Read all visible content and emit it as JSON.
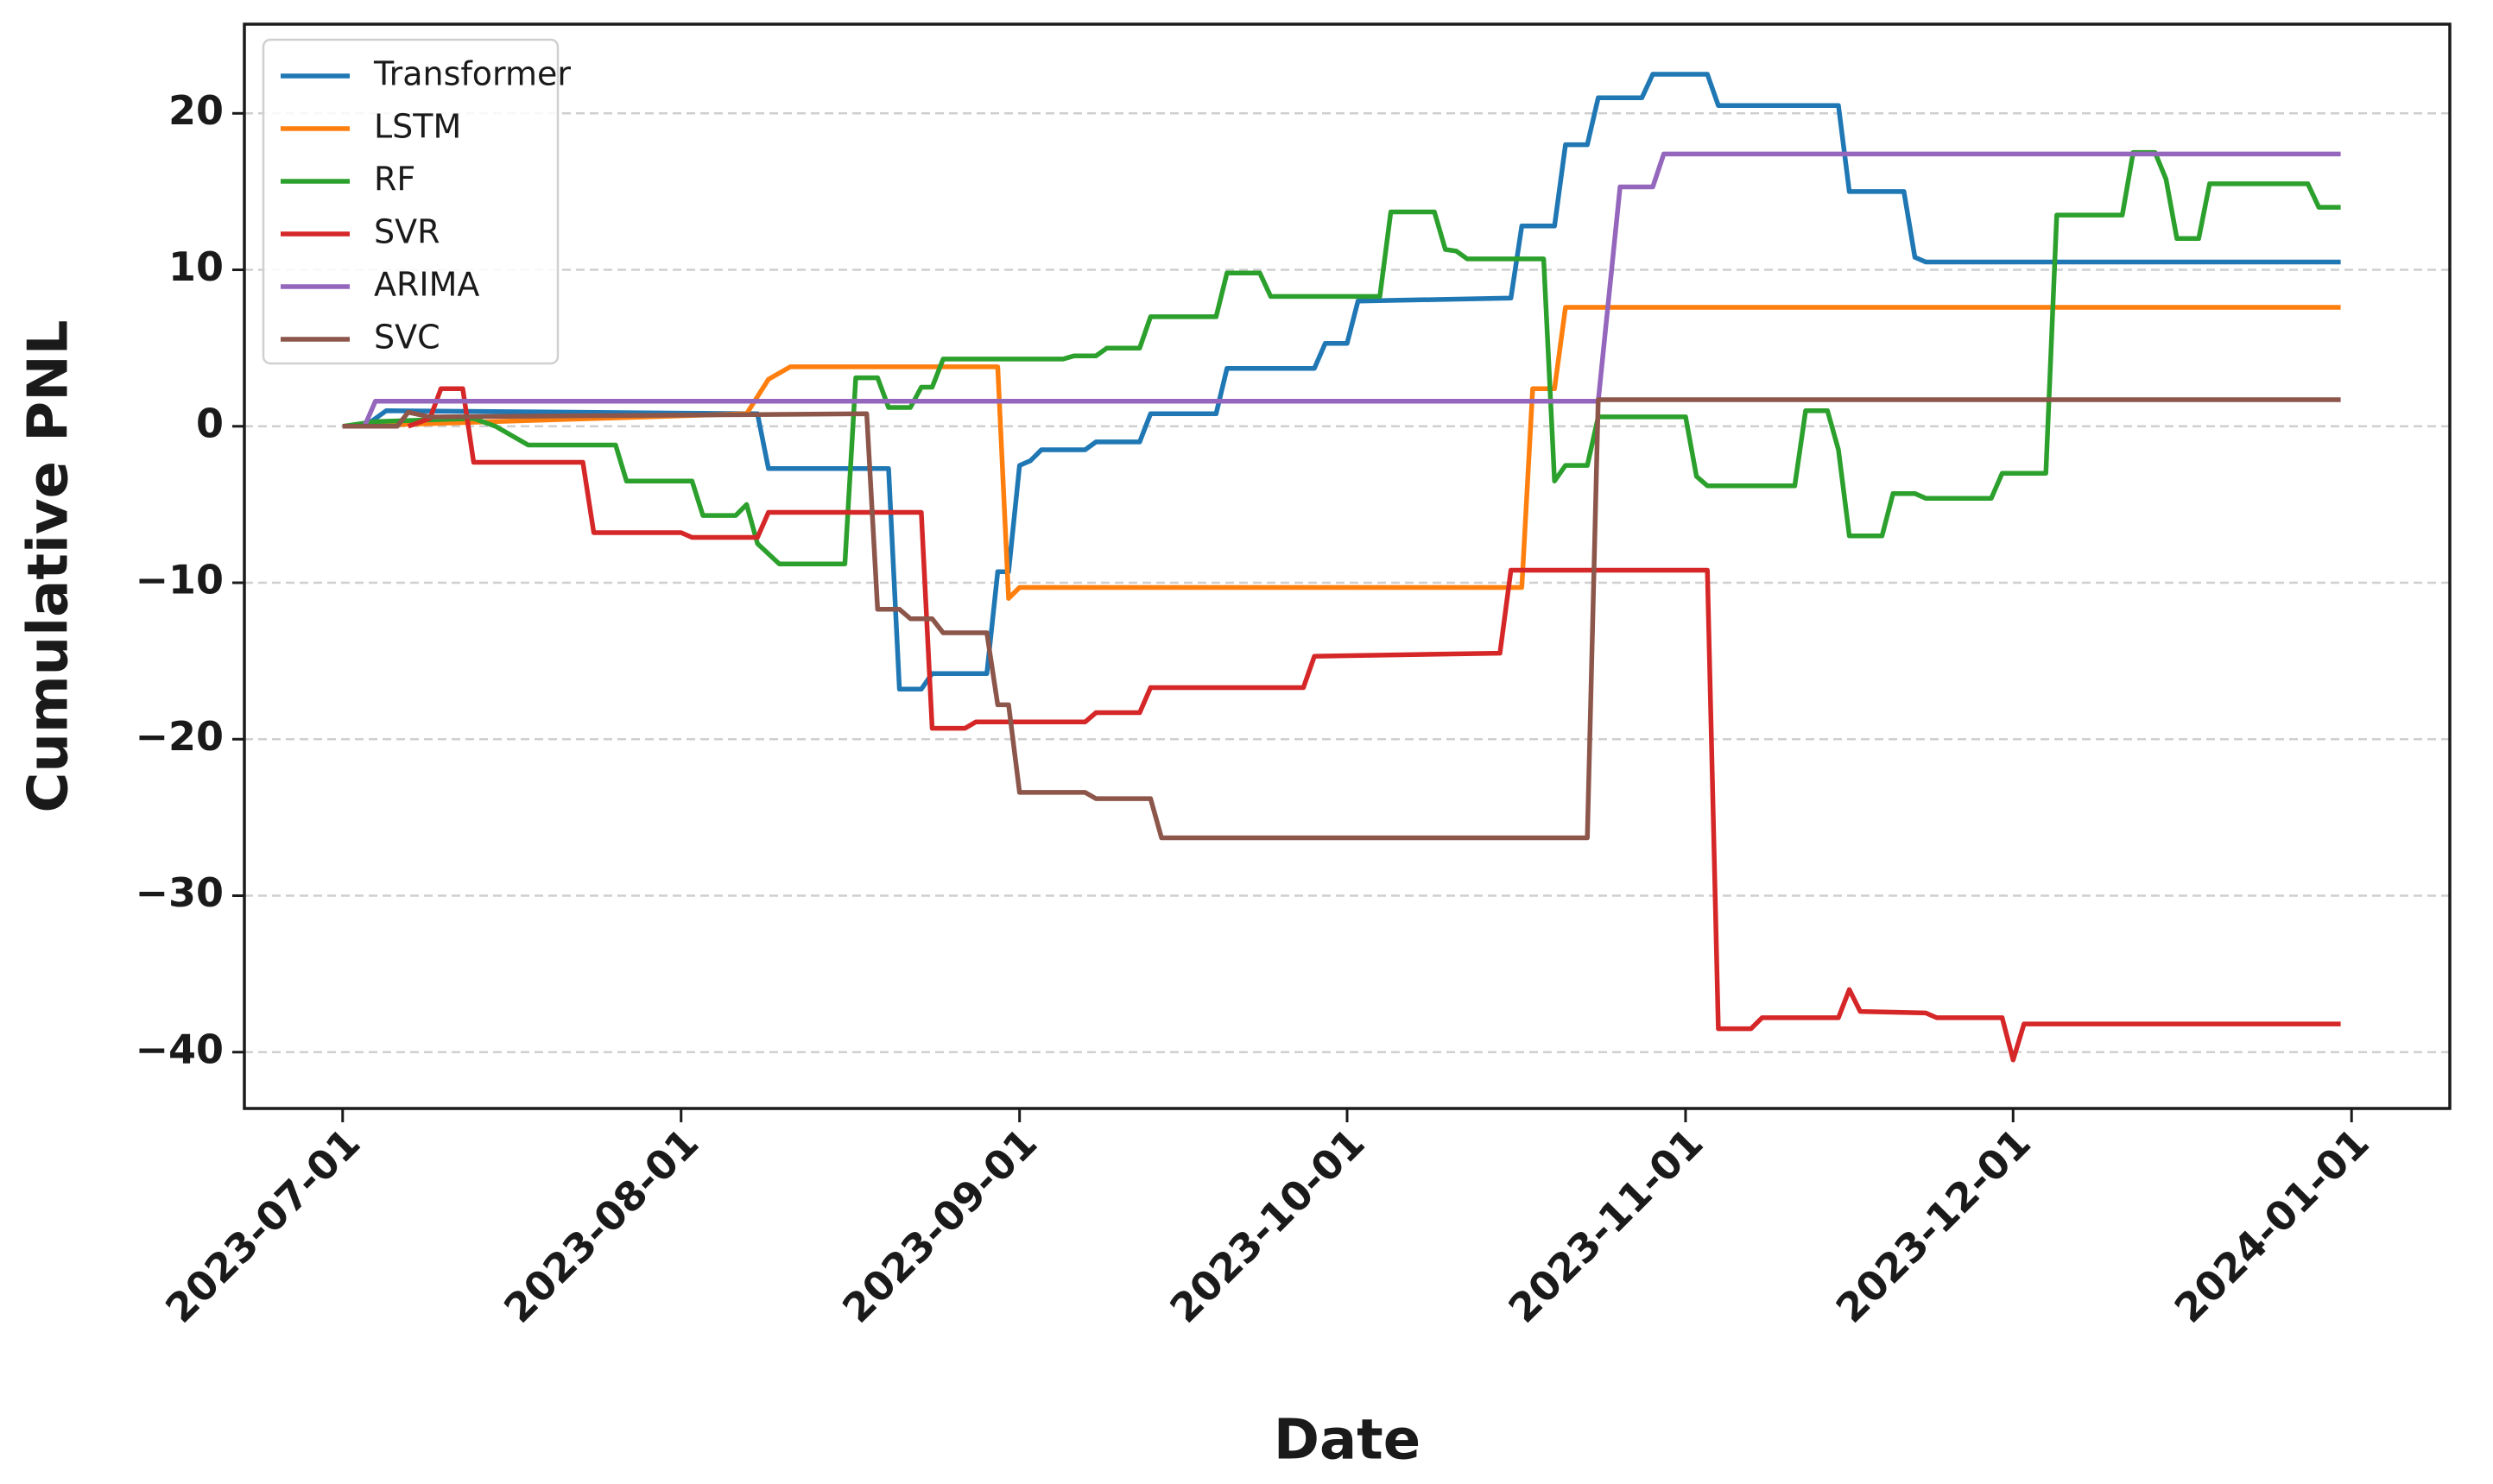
{
  "chart_data": {
    "type": "line",
    "xlabel": "Date",
    "ylabel": "Cumulative PNL",
    "xlim": [
      "2023-06-22",
      "2024-01-10"
    ],
    "xticks": [
      "2023-07-01",
      "2023-08-01",
      "2023-09-01",
      "2023-10-01",
      "2023-11-01",
      "2023-12-01",
      "2024-01-01"
    ],
    "ylim": [
      -43.6,
      25.7
    ],
    "yticks": [
      20,
      10,
      0,
      {
        "value": -10,
        "label": "−10"
      },
      {
        "value": -20,
        "label": "−20"
      },
      {
        "value": -30,
        "label": "−30"
      },
      {
        "value": -40,
        "label": "−40"
      }
    ],
    "grid": true,
    "legend": "upper left",
    "series": [
      {
        "name": "Transformer",
        "color": "#1f77b4",
        "x": [
          "2023-07-01",
          "2023-07-03",
          "2023-07-05",
          "2023-08-08",
          "2023-08-09",
          "2023-08-20",
          "2023-08-21",
          "2023-08-23",
          "2023-08-24",
          "2023-08-29",
          "2023-08-30",
          "2023-08-31",
          "2023-09-01",
          "2023-09-02",
          "2023-09-03",
          "2023-09-07",
          "2023-09-08",
          "2023-09-12",
          "2023-09-13",
          "2023-09-19",
          "2023-09-20",
          "2023-09-28",
          "2023-09-29",
          "2023-10-01",
          "2023-10-02",
          "2023-10-16",
          "2023-10-17",
          "2023-10-20",
          "2023-10-21",
          "2023-10-23",
          "2023-10-24",
          "2023-10-28",
          "2023-10-29",
          "2023-11-03",
          "2023-11-04",
          "2023-11-15",
          "2023-11-16",
          "2023-11-21",
          "2023-11-22",
          "2023-11-23",
          "2023-12-31"
        ],
        "values": [
          0,
          0,
          1,
          0.8,
          -2.7,
          -2.7,
          -16.8,
          -16.8,
          -15.8,
          -15.8,
          -9.3,
          -9.3,
          -2.5,
          -2.2,
          -1.5,
          -1.5,
          -1,
          -1,
          0.8,
          0.8,
          3.7,
          3.7,
          5.3,
          5.3,
          8,
          8.2,
          12.8,
          12.8,
          18,
          18,
          21,
          21,
          22.5,
          22.5,
          20.5,
          20.5,
          15,
          15,
          10.8,
          10.5,
          10.5
        ]
      },
      {
        "name": "LSTM",
        "color": "#ff7f0e",
        "x": [
          "2023-07-01",
          "2023-08-07",
          "2023-08-09",
          "2023-08-11",
          "2023-08-30",
          "2023-08-31",
          "2023-09-01",
          "2023-10-17",
          "2023-10-18",
          "2023-10-20",
          "2023-10-21",
          "2023-12-31"
        ],
        "values": [
          0,
          0.8,
          3,
          3.8,
          3.8,
          -11,
          -10.3,
          -10.3,
          2.4,
          2.4,
          7.6,
          7.6
        ]
      },
      {
        "name": "RF",
        "color": "#2ca02c",
        "x": [
          "2023-07-01",
          "2023-07-04",
          "2023-07-13",
          "2023-07-15",
          "2023-07-18",
          "2023-07-26",
          "2023-07-27",
          "2023-08-02",
          "2023-08-03",
          "2023-08-06",
          "2023-08-07",
          "2023-08-08",
          "2023-08-10",
          "2023-08-16",
          "2023-08-17",
          "2023-08-19",
          "2023-08-20",
          "2023-08-22",
          "2023-08-23",
          "2023-08-24",
          "2023-08-25",
          "2023-09-05",
          "2023-09-06",
          "2023-09-08",
          "2023-09-09",
          "2023-09-12",
          "2023-09-13",
          "2023-09-19",
          "2023-09-20",
          "2023-09-23",
          "2023-09-24",
          "2023-10-04",
          "2023-10-05",
          "2023-10-09",
          "2023-10-10",
          "2023-10-11",
          "2023-10-12",
          "2023-10-19",
          "2023-10-20",
          "2023-10-21",
          "2023-10-23",
          "2023-10-24",
          "2023-11-01",
          "2023-11-02",
          "2023-11-03",
          "2023-11-11",
          "2023-11-12",
          "2023-11-14",
          "2023-11-15",
          "2023-11-16",
          "2023-11-19",
          "2023-11-20",
          "2023-11-22",
          "2023-11-23",
          "2023-11-29",
          "2023-11-30",
          "2023-12-04",
          "2023-12-05",
          "2023-12-11",
          "2023-12-12",
          "2023-12-14",
          "2023-12-15",
          "2023-12-16",
          "2023-12-18",
          "2023-12-19",
          "2023-12-28",
          "2023-12-29",
          "2023-12-31"
        ],
        "values": [
          0,
          0.3,
          0.5,
          0,
          -1.2,
          -1.2,
          -3.5,
          -3.5,
          -5.7,
          -5.7,
          -5,
          -7.5,
          -8.8,
          -8.8,
          3.1,
          3.1,
          1.2,
          1.2,
          2.5,
          2.5,
          4.3,
          4.3,
          4.5,
          4.5,
          5,
          5,
          7,
          7,
          9.8,
          9.8,
          8.3,
          8.3,
          13.7,
          13.7,
          11.3,
          11.2,
          10.7,
          10.7,
          -3.5,
          -2.5,
          -2.5,
          0.6,
          0.6,
          -3.2,
          -3.8,
          -3.8,
          1,
          1,
          -1.5,
          -7,
          -7,
          -4.3,
          -4.3,
          -4.6,
          -4.6,
          -3,
          -3,
          13.5,
          13.5,
          17.5,
          17.5,
          15.8,
          12,
          12,
          15.5,
          15.5,
          14,
          14
        ]
      },
      {
        "name": "SVR",
        "color": "#d62728",
        "x": [
          "2023-07-07",
          "2023-07-09",
          "2023-07-10",
          "2023-07-12",
          "2023-07-13",
          "2023-07-23",
          "2023-07-24",
          "2023-08-01",
          "2023-08-02",
          "2023-08-08",
          "2023-08-09",
          "2023-08-23",
          "2023-08-24",
          "2023-08-27",
          "2023-08-28",
          "2023-09-07",
          "2023-09-08",
          "2023-09-12",
          "2023-09-13",
          "2023-09-27",
          "2023-09-28",
          "2023-10-15",
          "2023-10-16",
          "2023-11-03",
          "2023-11-04",
          "2023-11-07",
          "2023-11-08",
          "2023-11-15",
          "2023-11-16",
          "2023-11-17",
          "2023-11-23",
          "2023-11-24",
          "2023-11-30",
          "2023-12-01",
          "2023-12-02",
          "2023-12-31"
        ],
        "values": [
          0,
          0.5,
          2.4,
          2.4,
          -2.3,
          -2.3,
          -6.8,
          -6.8,
          -7.1,
          -7.1,
          -5.5,
          -5.5,
          -19.3,
          -19.3,
          -18.9,
          -18.9,
          -18.3,
          -18.3,
          -16.7,
          -16.7,
          -14.7,
          -14.5,
          -9.2,
          -9.2,
          -38.5,
          -38.5,
          -37.8,
          -37.8,
          -36,
          -37.4,
          -37.5,
          -37.8,
          -37.8,
          -40.5,
          -38.2,
          -38.2
        ]
      },
      {
        "name": "ARIMA",
        "color": "#9467bd",
        "x": [
          "2023-07-01",
          "2023-07-03",
          "2023-07-04",
          "2023-10-24",
          "2023-10-26",
          "2023-10-29",
          "2023-10-30",
          "2023-12-31"
        ],
        "values": [
          0,
          0,
          1.6,
          1.6,
          15.3,
          15.3,
          17.4,
          17.4
        ]
      },
      {
        "name": "SVC",
        "color": "#8c564b",
        "x": [
          "2023-07-01",
          "2023-07-06",
          "2023-07-07",
          "2023-07-09",
          "2023-08-18",
          "2023-08-19",
          "2023-08-21",
          "2023-08-22",
          "2023-08-24",
          "2023-08-25",
          "2023-08-29",
          "2023-08-30",
          "2023-08-31",
          "2023-09-01",
          "2023-09-07",
          "2023-09-08",
          "2023-09-13",
          "2023-09-14",
          "2023-10-23",
          "2023-10-24",
          "2023-12-31"
        ],
        "values": [
          0,
          0,
          0.9,
          0.6,
          0.8,
          -11.7,
          -11.7,
          -12.3,
          -12.3,
          -13.2,
          -13.2,
          -17.8,
          -17.8,
          -23.4,
          -23.4,
          -23.8,
          -23.8,
          -26.3,
          -26.3,
          1.7,
          1.7
        ]
      }
    ]
  }
}
